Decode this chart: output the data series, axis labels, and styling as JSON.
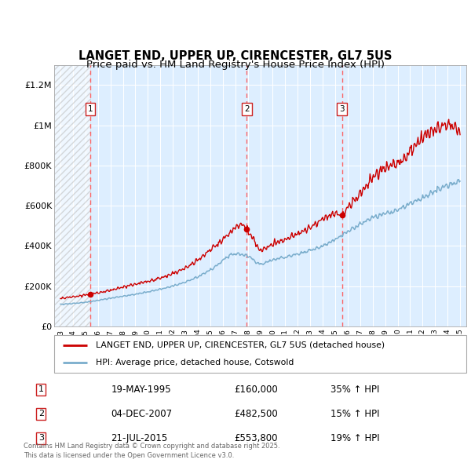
{
  "title": "LANGET END, UPPER UP, CIRENCESTER, GL7 5US",
  "subtitle": "Price paid vs. HM Land Registry's House Price Index (HPI)",
  "xlim": [
    1992.5,
    2025.5
  ],
  "ylim": [
    0,
    1300000
  ],
  "yticks": [
    0,
    200000,
    400000,
    600000,
    800000,
    1000000,
    1200000
  ],
  "ytick_labels": [
    "£0",
    "£200K",
    "£400K",
    "£600K",
    "£800K",
    "£1M",
    "£1.2M"
  ],
  "sale_dates": [
    1995.38,
    2007.92,
    2015.55
  ],
  "sale_prices": [
    160000,
    482500,
    553800
  ],
  "sale_labels": [
    "1",
    "2",
    "3"
  ],
  "sale_info": [
    {
      "num": "1",
      "date": "19-MAY-1995",
      "price": "£160,000",
      "hpi": "35% ↑ HPI"
    },
    {
      "num": "2",
      "date": "04-DEC-2007",
      "price": "£482,500",
      "hpi": "15% ↑ HPI"
    },
    {
      "num": "3",
      "date": "21-JUL-2015",
      "price": "£553,800",
      "hpi": "19% ↑ HPI"
    }
  ],
  "legend_line1": "LANGET END, UPPER UP, CIRENCESTER, GL7 5US (detached house)",
  "legend_line2": "HPI: Average price, detached house, Cotswold",
  "footer": "Contains HM Land Registry data © Crown copyright and database right 2025.\nThis data is licensed under the Open Government Licence v3.0.",
  "line_color_red": "#cc0000",
  "line_color_blue": "#7aadcc",
  "bg_color": "#ddeeff",
  "vline_color": "#ff5555",
  "title_fontsize": 10.5,
  "subtitle_fontsize": 9.5,
  "axis_fontsize": 8,
  "xticks": [
    1993,
    1994,
    1995,
    1996,
    1997,
    1998,
    1999,
    2000,
    2001,
    2002,
    2003,
    2004,
    2005,
    2006,
    2007,
    2008,
    2009,
    2010,
    2011,
    2012,
    2013,
    2014,
    2015,
    2016,
    2017,
    2018,
    2019,
    2020,
    2021,
    2022,
    2023,
    2024,
    2025
  ],
  "hpi_anchor_years": [
    1993,
    1995,
    1997,
    1999,
    2001,
    2003,
    2005,
    2007,
    2008,
    2009,
    2010,
    2012,
    2014,
    2016,
    2018,
    2020,
    2022,
    2024,
    2025
  ],
  "hpi_anchor_vals": [
    110000,
    120000,
    140000,
    160000,
    185000,
    220000,
    280000,
    360000,
    350000,
    310000,
    330000,
    360000,
    400000,
    470000,
    540000,
    580000,
    640000,
    700000,
    720000
  ],
  "red_anchor_years": [
    1993,
    1995.38,
    1997,
    1999,
    2001,
    2003,
    2005,
    2006.5,
    2007.5,
    2007.92,
    2008.5,
    2009,
    2010,
    2011,
    2012,
    2013,
    2014,
    2015.0,
    2015.55,
    2016,
    2017,
    2018,
    2019,
    2020,
    2021,
    2022,
    2023,
    2024,
    2025
  ],
  "red_anchor_vals": [
    140000,
    160000,
    180000,
    210000,
    240000,
    290000,
    380000,
    460000,
    510000,
    482500,
    430000,
    380000,
    410000,
    430000,
    460000,
    490000,
    530000,
    560000,
    553800,
    590000,
    660000,
    740000,
    790000,
    810000,
    870000,
    940000,
    980000,
    1000000,
    970000
  ]
}
